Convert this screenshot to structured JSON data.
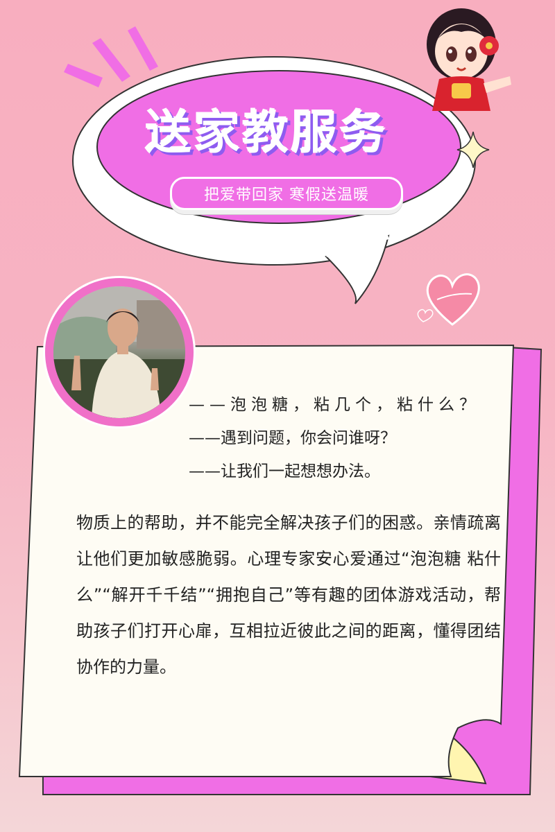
{
  "banner": {
    "title": "送家教服务",
    "subtitle": "把爱带回家 寒假送温暖"
  },
  "dialogue": [
    "——泡泡糖，粘几个，粘什么？",
    "——遇到问题，你会问谁呀？",
    "——让我们一起想想办法。"
  ],
  "body": "物质上的帮助，并不能完全解决孩子们的困惑。亲情疏离让他们更加敏感脆弱。心理专家安心爱通过“泡泡糖 粘什么”“解开千千结”“拥抱自己”等有趣的团体游戏活动，帮助孩子们打开心扉，互相拉近彼此之间的距离，懂得团结协作的力量。",
  "colors": {
    "background": "#f8aebf",
    "accent_pink": "#f06ee5",
    "title_shadow": "#8e5cf0",
    "paper": "#fefcf4"
  },
  "icons": [
    "mascot-girl-icon",
    "heart-icon",
    "sparkle-icon",
    "burst-lines-icon"
  ]
}
